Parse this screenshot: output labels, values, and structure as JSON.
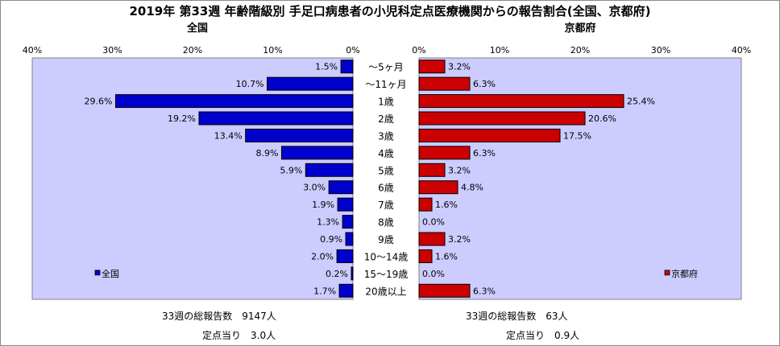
{
  "title": "2019年 第33週 年齢階級別 手足口病患者の小児科定点医療機関からの報告割合(全国、京都府)",
  "colors": {
    "plot_bg": "#ccccff",
    "zenkoku": "#0000cc",
    "kyoto": "#cc0000"
  },
  "chart_data": [
    {
      "type": "bar",
      "orientation": "horizontal",
      "direction": "right-to-left",
      "title": "全国",
      "xlim": [
        0,
        40
      ],
      "tick_labels": [
        "40%",
        "30%",
        "20%",
        "10%",
        "0%"
      ],
      "grid": false,
      "legend": "bottom-left",
      "series": [
        {
          "name": "全国",
          "values": [
            1.5,
            10.7,
            29.6,
            19.2,
            13.4,
            8.9,
            5.9,
            3.0,
            1.9,
            1.3,
            0.9,
            2.0,
            0.2,
            1.7
          ],
          "value_labels": [
            "1.5%",
            "10.7%",
            "29.6%",
            "19.2%",
            "13.4%",
            "8.9%",
            "5.9%",
            "3.0%",
            "1.9%",
            "1.3%",
            "0.9%",
            "2.0%",
            "0.2%",
            "1.7%"
          ]
        }
      ]
    },
    {
      "type": "bar",
      "orientation": "horizontal",
      "direction": "left-to-right",
      "title": "京都府",
      "xlim": [
        0,
        40
      ],
      "tick_labels": [
        "0%",
        "10%",
        "20%",
        "30%",
        "40%"
      ],
      "grid": false,
      "legend": "bottom-right",
      "series": [
        {
          "name": "京都府",
          "values": [
            3.2,
            6.3,
            25.4,
            20.6,
            17.5,
            6.3,
            3.2,
            4.8,
            1.6,
            0.0,
            3.2,
            1.6,
            0.0,
            6.3
          ],
          "value_labels": [
            "3.2%",
            "6.3%",
            "25.4%",
            "20.6%",
            "17.5%",
            "6.3%",
            "3.2%",
            "4.8%",
            "1.6%",
            "0.0%",
            "3.2%",
            "1.6%",
            "0.0%",
            "6.3%"
          ]
        }
      ]
    }
  ],
  "categories": [
    "～5ヶ月",
    "～11ヶ月",
    "1歳",
    "2歳",
    "3歳",
    "4歳",
    "5歳",
    "6歳",
    "7歳",
    "8歳",
    "9歳",
    "10～14歳",
    "15～19歳",
    "20歳以上"
  ],
  "footer": {
    "zenkoku_total": "33週の総報告数　9147人",
    "zenkoku_per": "定点当り　3.0人",
    "kyoto_total": "33週の総報告数　63人",
    "kyoto_per": "定点当り　0.9人"
  }
}
